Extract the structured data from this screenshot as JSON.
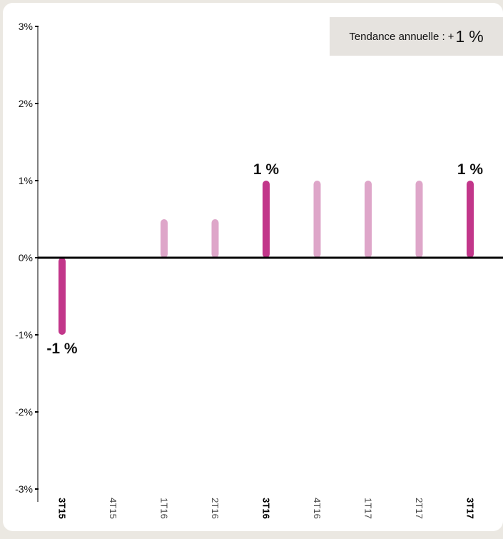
{
  "trend": {
    "label": "Tendance annuelle :",
    "sign": "+",
    "value": "1",
    "unit": "%"
  },
  "colors": {
    "highlight": "#c2368a",
    "normal": "#dea6c9",
    "axis": "#000000",
    "background": "#ebe8e2",
    "panel": "#ffffff",
    "trend_box": "#e6e3df"
  },
  "chart_data": {
    "type": "bar",
    "categories": [
      "3T15",
      "4T15",
      "1T16",
      "2T16",
      "3T16",
      "4T16",
      "1T17",
      "2T17",
      "3T17"
    ],
    "values": [
      -1,
      0,
      0.5,
      0.5,
      1,
      1,
      1,
      1,
      1
    ],
    "highlighted": [
      "3T15",
      "3T16",
      "3T17"
    ],
    "data_labels": [
      {
        "category": "3T15",
        "text": "-1 %"
      },
      {
        "category": "3T16",
        "text": "1 %"
      },
      {
        "category": "3T17",
        "text": "1 %"
      }
    ],
    "yticks": [
      "3%",
      "2%",
      "1%",
      "0%",
      "-1%",
      "-2%",
      "-3%"
    ],
    "ytick_values": [
      3,
      2,
      1,
      0,
      -1,
      -2,
      -3
    ],
    "ylim": [
      -3,
      3
    ],
    "title": "",
    "xlabel": "",
    "ylabel": "",
    "grid": false
  }
}
